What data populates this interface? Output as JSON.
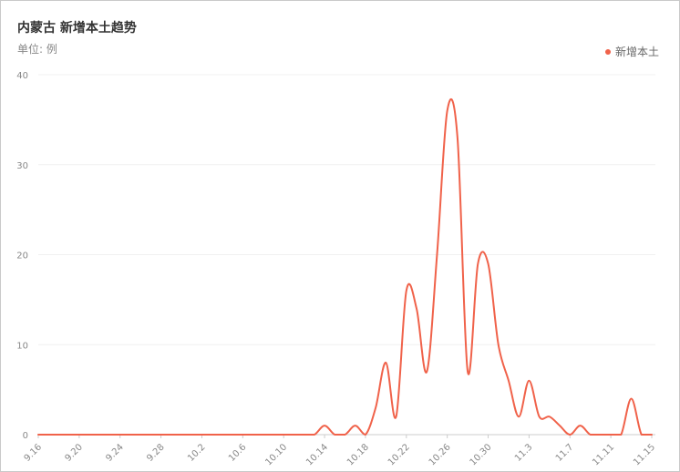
{
  "chart_title": "内蒙古 新增本土趋势",
  "unit_label": "单位: 例",
  "colors": {
    "line": "#f0624a",
    "grid": "#f0f0f0",
    "axis": "#cccccc"
  },
  "chart_data": {
    "type": "line",
    "title": "内蒙古 新增本土趋势",
    "ylabel": "单位: 例",
    "ylim": [
      0,
      40
    ],
    "yticks": [
      0,
      10,
      20,
      30,
      40
    ],
    "legend_position": "top-right",
    "grid": true,
    "x_tick_labels": [
      "9.16",
      "9.20",
      "9.24",
      "9.28",
      "10.2",
      "10.6",
      "10.10",
      "10.14",
      "10.18",
      "10.22",
      "10.26",
      "10.30",
      "11.3",
      "11.7",
      "11.11",
      "11.15"
    ],
    "series": [
      {
        "name": "新增本土",
        "x": [
          "9.16",
          "9.17",
          "9.18",
          "9.19",
          "9.20",
          "9.21",
          "9.22",
          "9.23",
          "9.24",
          "9.25",
          "9.26",
          "9.27",
          "9.28",
          "9.29",
          "9.30",
          "10.1",
          "10.2",
          "10.3",
          "10.4",
          "10.5",
          "10.6",
          "10.7",
          "10.8",
          "10.9",
          "10.10",
          "10.11",
          "10.12",
          "10.13",
          "10.14",
          "10.15",
          "10.16",
          "10.17",
          "10.18",
          "10.19",
          "10.20",
          "10.21",
          "10.22",
          "10.23",
          "10.24",
          "10.25",
          "10.26",
          "10.27",
          "10.28",
          "10.29",
          "10.30",
          "10.31",
          "11.1",
          "11.2",
          "11.3",
          "11.4",
          "11.5",
          "11.6",
          "11.7",
          "11.8",
          "11.9",
          "11.10",
          "11.11",
          "11.12",
          "11.13",
          "11.14",
          "11.15"
        ],
        "values": [
          0,
          0,
          0,
          0,
          0,
          0,
          0,
          0,
          0,
          0,
          0,
          0,
          0,
          0,
          0,
          0,
          0,
          0,
          0,
          0,
          0,
          0,
          0,
          0,
          0,
          0,
          0,
          0,
          1,
          0,
          0,
          1,
          0,
          3,
          8,
          2,
          16,
          14,
          7,
          20,
          36,
          33,
          7,
          19,
          19,
          10,
          6,
          2,
          6,
          2,
          2,
          1,
          0,
          1,
          0,
          0,
          0,
          0,
          4,
          0,
          0
        ]
      }
    ]
  }
}
